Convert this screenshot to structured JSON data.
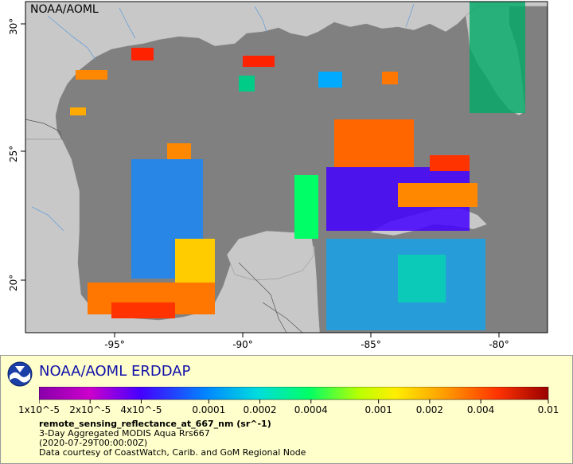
{
  "map": {
    "watermark": "NOAA/AOML",
    "lon_ticks": [
      {
        "lon": -95,
        "label": "-95°"
      },
      {
        "lon": -90,
        "label": "-90°"
      },
      {
        "lon": -85,
        "label": "-85°"
      },
      {
        "lon": -80,
        "label": "-80°"
      }
    ],
    "lat_ticks": [
      {
        "lat": 30,
        "label": "30°"
      },
      {
        "lat": 25,
        "label": "25°"
      },
      {
        "lat": 20,
        "label": "20°"
      }
    ],
    "colors": {
      "ocean": "#808080",
      "land": "#c8c8c8",
      "border": "#555555",
      "river": "#6aa0d8"
    }
  },
  "legend": {
    "brand": "NOAA/AOML ERDDAP",
    "colorbar_scale": "log",
    "colorbar_range": [
      1e-05,
      0.01
    ],
    "colorbar_labels": [
      "1x10^-5",
      "2x10^-5",
      "4x10^-5",
      "0.0001",
      "0.0002",
      "0.0004",
      "0.001",
      "0.002",
      "0.004",
      "0.01"
    ],
    "colorbar_colors": [
      "#8800aa",
      "#cc00cc",
      "#4400ff",
      "#0088ff",
      "#00dddd",
      "#00ff66",
      "#bbff00",
      "#ffee00",
      "#ff9900",
      "#ff3300",
      "#990000"
    ],
    "variable": "remote_sensing_reflectance_at_667_nm (sr^-1)",
    "subtitle": "3-Day Aggregated MODIS Aqua Rrs667",
    "time": "(2020-07-29T00:00:00Z)",
    "credit": "Data courtesy of CoastWatch, Carib. and GoM Regional Node",
    "panel_color": "#ffffcc"
  }
}
